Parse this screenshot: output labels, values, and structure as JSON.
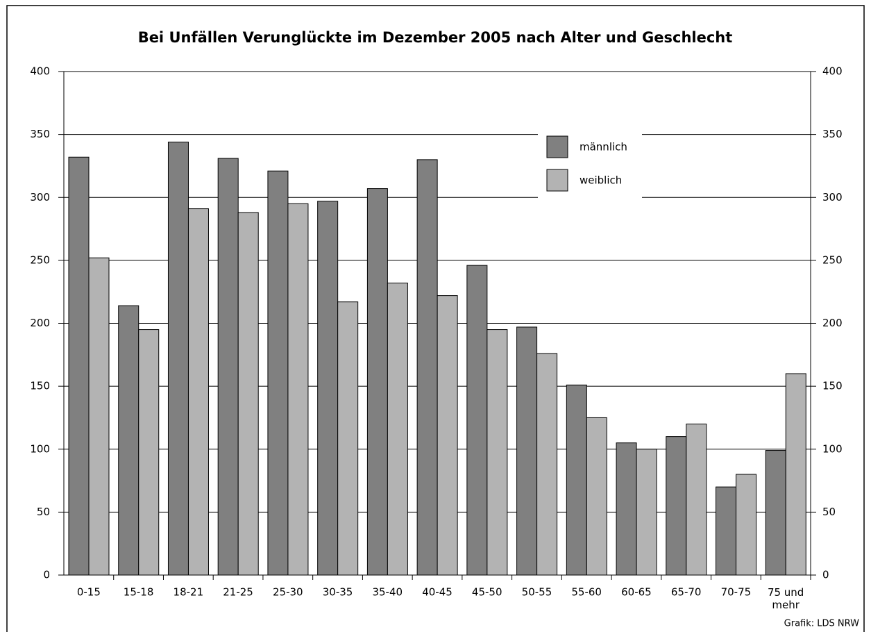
{
  "chart_data": {
    "type": "bar",
    "title": "Bei Unfällen Verunglückte im Dezember 2005 nach Alter und Geschlecht",
    "categories": [
      "0-15",
      "15-18",
      "18-21",
      "21-25",
      "25-30",
      "30-35",
      "35-40",
      "40-45",
      "45-50",
      "50-55",
      "55-60",
      "60-65",
      "65-70",
      "70-75",
      "75 und mehr"
    ],
    "series": [
      {
        "name": "männlich",
        "color": "#808080",
        "values": [
          332,
          214,
          344,
          331,
          321,
          297,
          307,
          330,
          246,
          197,
          151,
          105,
          110,
          70,
          99
        ]
      },
      {
        "name": "weiblich",
        "color": "#b3b3b3",
        "values": [
          252,
          195,
          291,
          288,
          295,
          217,
          232,
          222,
          195,
          176,
          125,
          100,
          120,
          80,
          160
        ]
      }
    ],
    "ylim": [
      0,
      400
    ],
    "yticks": [
      0,
      50,
      100,
      150,
      200,
      250,
      300,
      350,
      400
    ],
    "y2lim": [
      0,
      400
    ],
    "y2ticks": [
      0,
      50,
      100,
      150,
      200,
      250,
      300,
      350,
      400
    ],
    "grid": true,
    "legend": "upper right",
    "source": "Grafik: LDS NRW"
  }
}
